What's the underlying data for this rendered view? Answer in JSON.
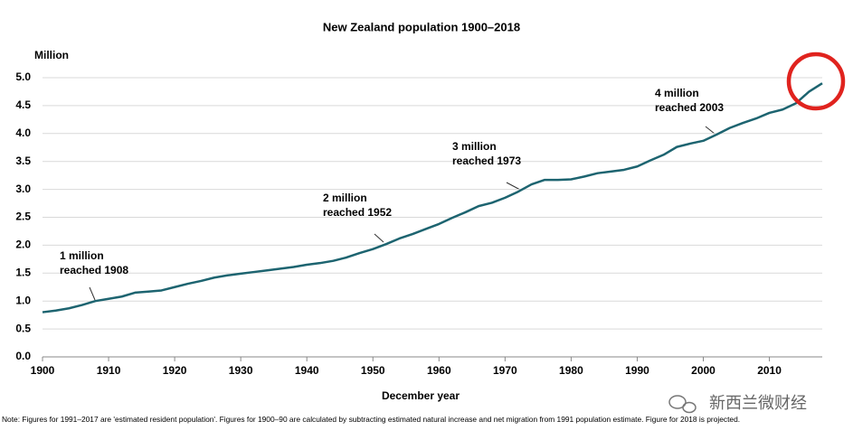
{
  "chart_data": {
    "type": "line",
    "title": "New Zealand population 1900–2018",
    "y_label": "Million",
    "x_label": "December year",
    "note": "Note: Figures for 1991–2017 are 'estimated resident population'. Figures for 1900–90 are calculated by subtracting estimated natural increase and net migration from 1991 population estimate. Figure for 2018 is projected.",
    "watermark": "新西兰微财经",
    "color": "#1d6470",
    "x": [
      1900,
      1902,
      1904,
      1906,
      1908,
      1910,
      1912,
      1914,
      1916,
      1918,
      1920,
      1922,
      1924,
      1926,
      1928,
      1930,
      1932,
      1934,
      1936,
      1938,
      1940,
      1942,
      1944,
      1946,
      1948,
      1950,
      1952,
      1954,
      1956,
      1958,
      1960,
      1962,
      1964,
      1966,
      1968,
      1970,
      1972,
      1974,
      1976,
      1978,
      1980,
      1982,
      1984,
      1986,
      1988,
      1990,
      1992,
      1994,
      1996,
      1998,
      2000,
      2002,
      2004,
      2006,
      2008,
      2010,
      2012,
      2014,
      2016,
      2018
    ],
    "values": [
      0.8,
      0.83,
      0.87,
      0.93,
      1.0,
      1.04,
      1.08,
      1.15,
      1.17,
      1.19,
      1.25,
      1.31,
      1.36,
      1.42,
      1.46,
      1.49,
      1.52,
      1.55,
      1.58,
      1.61,
      1.65,
      1.68,
      1.72,
      1.78,
      1.86,
      1.93,
      2.02,
      2.12,
      2.2,
      2.29,
      2.38,
      2.49,
      2.59,
      2.7,
      2.76,
      2.85,
      2.96,
      3.09,
      3.17,
      3.17,
      3.18,
      3.23,
      3.29,
      3.32,
      3.35,
      3.41,
      3.52,
      3.62,
      3.76,
      3.82,
      3.87,
      3.98,
      4.1,
      4.19,
      4.27,
      4.37,
      4.43,
      4.54,
      4.75,
      4.9
    ],
    "xlim": [
      1900,
      2018
    ],
    "xticks": [
      1900,
      1910,
      1920,
      1930,
      1940,
      1950,
      1960,
      1970,
      1980,
      1990,
      2000,
      2010
    ],
    "ylim": [
      0,
      5
    ],
    "yticks": [
      {
        "value": 0,
        "label": "0.0"
      },
      0.5,
      {
        "value": 1,
        "label": "1.0"
      },
      1.5,
      {
        "value": 2,
        "label": "2.0"
      },
      2.5,
      {
        "value": 3,
        "label": "3.0"
      },
      3.5,
      {
        "value": 4,
        "label": "4.0"
      },
      4.5,
      {
        "value": 5,
        "label": "5.0"
      }
    ],
    "grid": true,
    "annotations": [
      {
        "lines": [
          "1 million",
          "reached 1908"
        ]
      },
      {
        "lines": [
          "2 million",
          "reached 1952"
        ]
      },
      {
        "lines": [
          "3 million",
          "reached 1973"
        ]
      },
      {
        "lines": [
          "4 million",
          "reached 2003"
        ]
      }
    ]
  }
}
